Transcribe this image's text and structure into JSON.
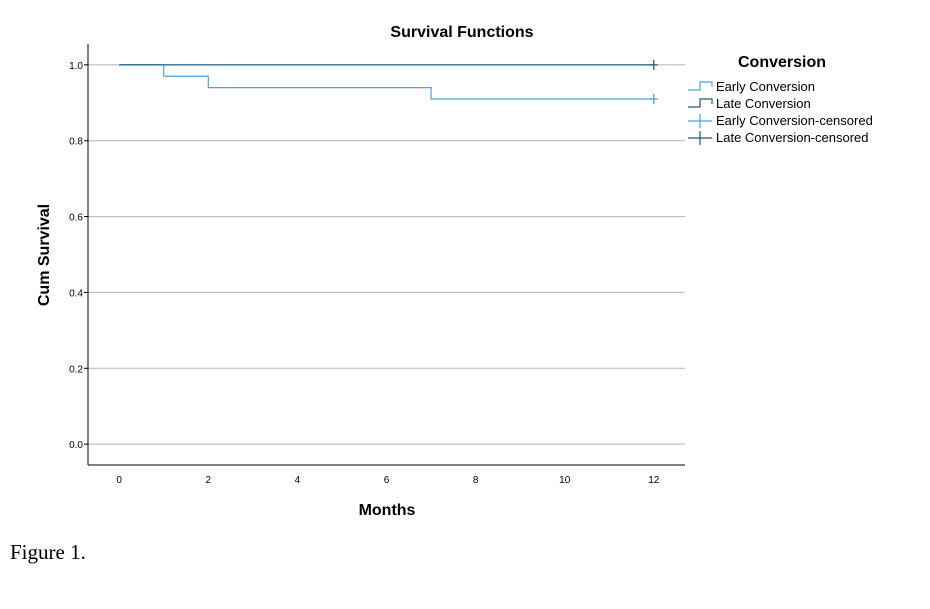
{
  "caption": "Figure 1.",
  "chart_data": {
    "type": "line",
    "step": true,
    "title": "Survival Functions",
    "xlabel": "Months",
    "ylabel": "Cum Survival",
    "xlim": [
      -0.7,
      12.7
    ],
    "ylim": [
      -0.055,
      1.055
    ],
    "xticks": [
      0,
      2,
      4,
      6,
      8,
      10,
      12
    ],
    "xtick_labels": [
      "0",
      "2",
      "4",
      "6",
      "8",
      "10",
      "12"
    ],
    "yticks": [
      0.0,
      0.2,
      0.4,
      0.6,
      0.8,
      1.0
    ],
    "ytick_labels": [
      "0.0",
      "0.2",
      "0.4",
      "0.6",
      "0.8",
      "1.0"
    ],
    "grid": "horizontal",
    "legend": {
      "title": "Conversion",
      "position": "right",
      "entries": [
        "Early Conversion",
        "Late Conversion",
        "Early Conversion-censored",
        "Late Conversion-censored"
      ]
    },
    "series": [
      {
        "name": "Early Conversion",
        "color": "#4aa3df",
        "x": [
          0,
          1,
          2,
          7,
          12
        ],
        "y": [
          1.0,
          0.97,
          0.94,
          0.91,
          0.91
        ],
        "censored": [
          {
            "x": 12,
            "y": 0.91
          }
        ]
      },
      {
        "name": "Late Conversion",
        "color": "#1b5e7a",
        "x": [
          0,
          12
        ],
        "y": [
          1.0,
          1.0
        ],
        "censored": [
          {
            "x": 12,
            "y": 1.0
          }
        ]
      }
    ]
  }
}
